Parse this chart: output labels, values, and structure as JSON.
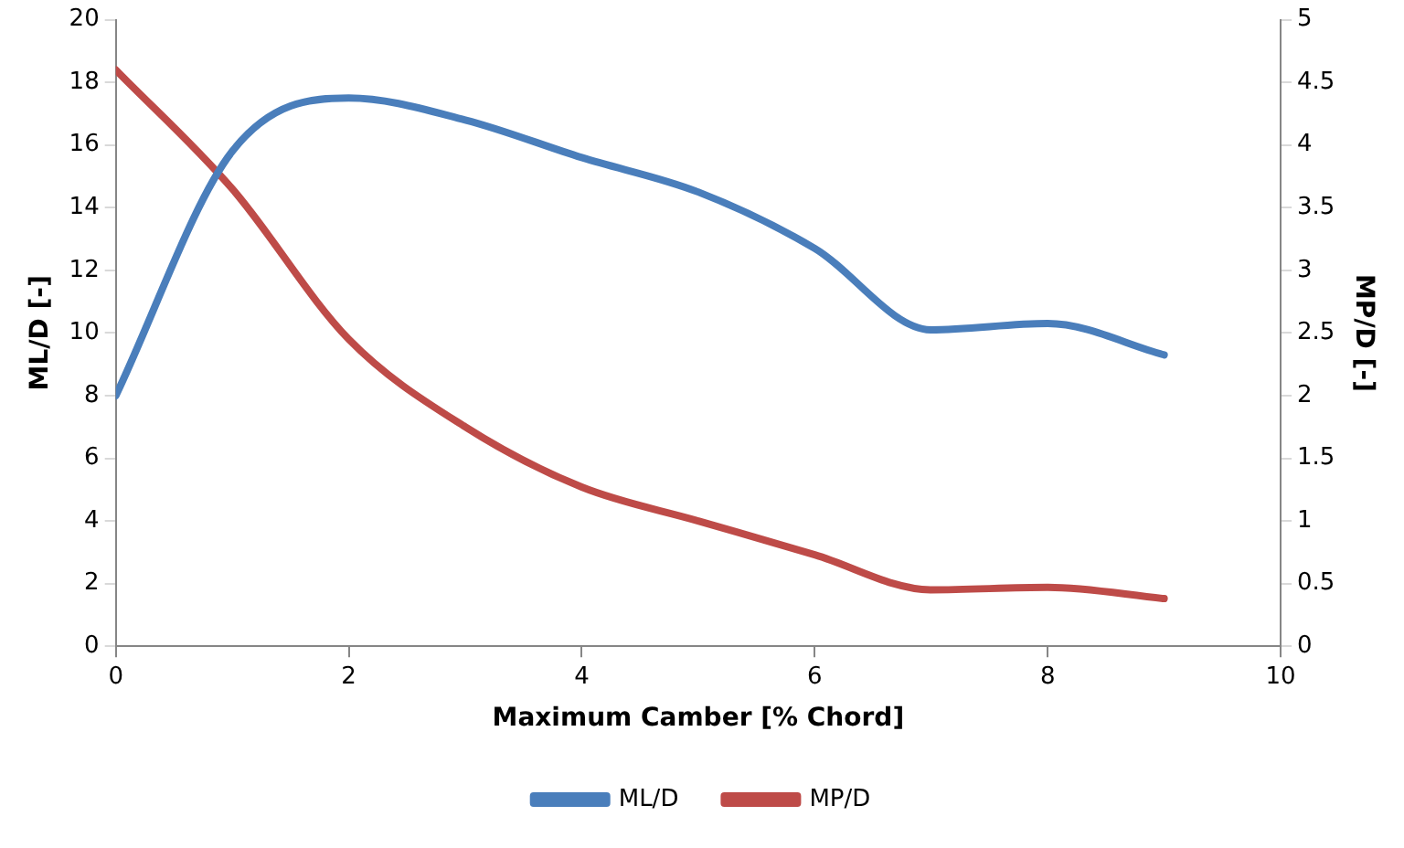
{
  "chart_data": {
    "type": "line",
    "xlabel": "Maximum Camber [% Chord]",
    "ylabel": "ML/D [-]",
    "y2label": "MP/D [-]",
    "x": [
      0,
      1,
      2,
      3,
      4,
      5,
      6,
      7,
      8,
      9
    ],
    "series": [
      {
        "name": "ML/D",
        "color": "#4a7ebb",
        "values": [
          8,
          15.8,
          17.5,
          16.8,
          15.6,
          14.5,
          12.7,
          10.1,
          10.3,
          9.3
        ]
      },
      {
        "name": "MP/D",
        "color": "#be4b48",
        "axis": "y2",
        "values": [
          4.6,
          3.65,
          2.45,
          1.75,
          1.27,
          1.0,
          0.73,
          0.45,
          0.47,
          0.38
        ]
      }
    ],
    "xlim": [
      0,
      10
    ],
    "xticks": [
      0,
      2,
      4,
      6,
      8,
      10
    ],
    "ylim": [
      0,
      20
    ],
    "yticks": [
      0,
      2,
      4,
      6,
      8,
      10,
      12,
      14,
      16,
      18,
      20
    ],
    "y2lim": [
      0,
      5
    ],
    "y2ticks": [
      0,
      0.5,
      1,
      1.5,
      2,
      2.5,
      3,
      3.5,
      4,
      4.5,
      5
    ],
    "grid": false,
    "legend": "bottom",
    "marker": "none"
  }
}
